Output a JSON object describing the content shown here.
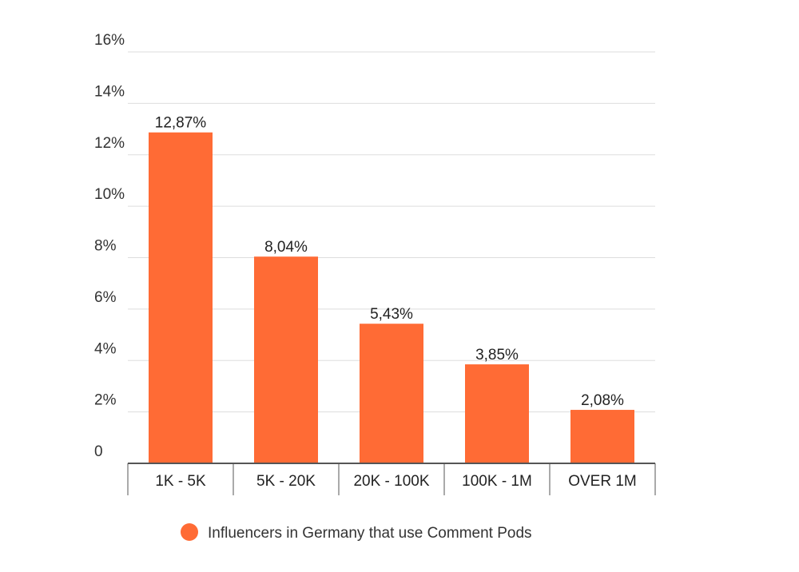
{
  "chart_data": {
    "type": "bar",
    "categories": [
      "1K - 5K",
      "5K - 20K",
      "20K - 100K",
      "100K - 1M",
      "OVER 1M"
    ],
    "series": [
      {
        "name": "Influencers in Germany that use Comment Pods",
        "values": [
          12.87,
          8.04,
          5.43,
          3.85,
          2.08
        ],
        "labels": [
          "12,87%",
          "8,04%",
          "5,43%",
          "3,85%",
          "2,08%"
        ]
      }
    ],
    "title": "",
    "xlabel": "",
    "ylabel": "",
    "ylim": [
      0,
      16
    ],
    "yticks": [
      0,
      2,
      4,
      6,
      8,
      10,
      12,
      14,
      16
    ],
    "ytick_labels": [
      "0",
      "2%",
      "4%",
      "6%",
      "8%",
      "10%",
      "12%",
      "14%",
      "16%"
    ],
    "grid": true,
    "legend_position": "bottom-center",
    "colors": {
      "bar": "#ff6b35",
      "grid": "#dddddd",
      "axis": "#555555"
    }
  }
}
